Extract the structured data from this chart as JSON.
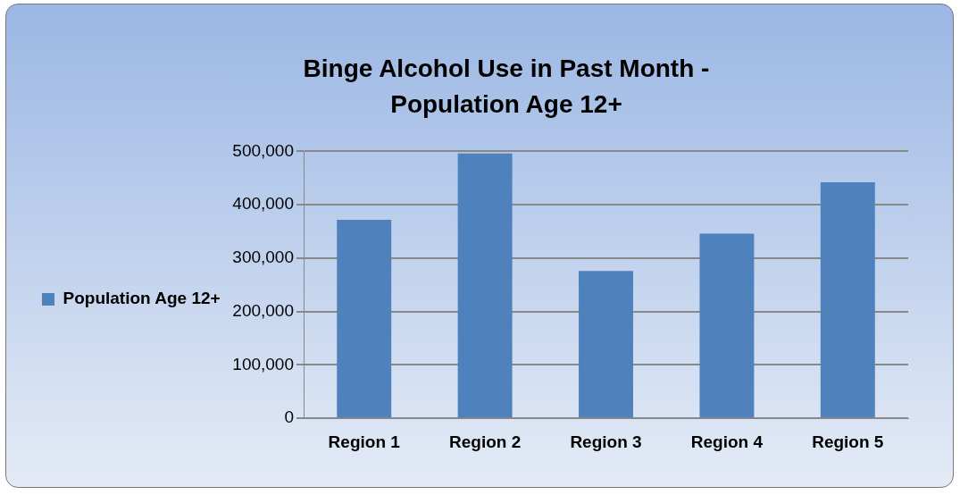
{
  "chart_data": {
    "type": "bar",
    "title": "Binge Alcohol Use in Past Month - Population Age 12+",
    "categories": [
      "Region 1",
      "Region 2",
      "Region 3",
      "Region 4",
      "Region 5"
    ],
    "series": [
      {
        "name": "Population Age 12+",
        "color": "#4f81bd",
        "values": [
          372000,
          496000,
          276000,
          346000,
          442000
        ]
      }
    ],
    "ylim": [
      0,
      500000
    ],
    "yticks": [
      0,
      {
        "value": 100000,
        "label": "100,000"
      },
      {
        "value": 200000,
        "label": "200,000"
      },
      {
        "value": 300000,
        "label": "300,000"
      },
      {
        "value": 400000,
        "label": "400,000"
      },
      {
        "value": 500000,
        "label": "500,000"
      }
    ],
    "grid": "y",
    "legend": "left"
  }
}
